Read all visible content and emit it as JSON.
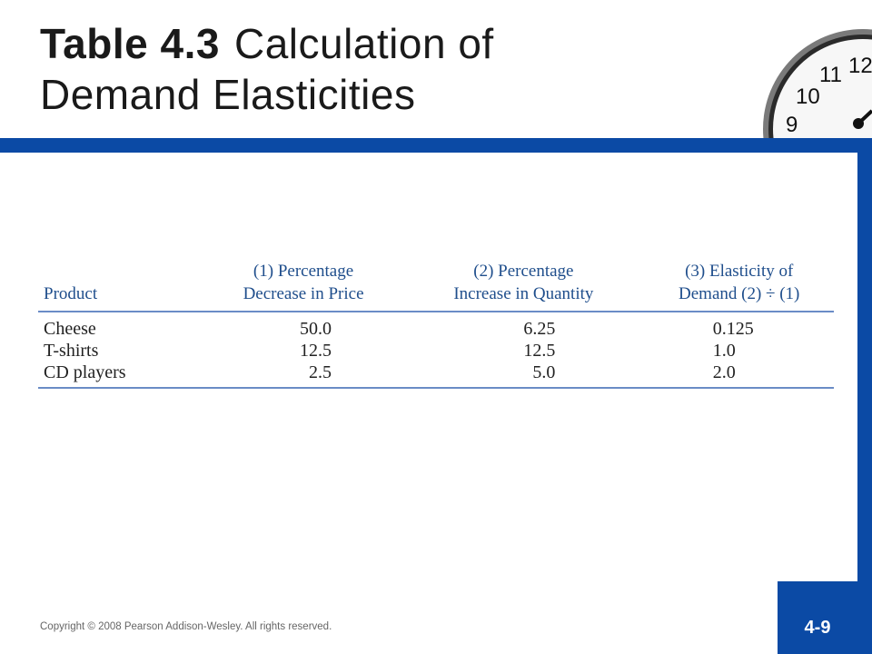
{
  "slide": {
    "title_bold": "Table 4.3",
    "title_rest_line1": "Calculation of",
    "title_line2": "Demand Elasticities",
    "copyright": "Copyright © 2008 Pearson Addison-Wesley. All rights reserved.",
    "slide_number": "4-9",
    "accent_color": "#0b4aa5"
  },
  "clock_numerals": [
    "12",
    "11",
    "10",
    "9"
  ],
  "table": {
    "header": {
      "col0": "Product",
      "col1_line1": "(1) Percentage",
      "col1_line2": "Decrease in Price",
      "col2_line1": "(2) Percentage",
      "col2_line2": "Increase in Quantity",
      "col3_line1": "(3) Elasticity of",
      "col3_line2": "Demand (2) ÷ (1)"
    },
    "rows": [
      {
        "product": "Cheese",
        "price_decrease": "50.0",
        "quantity_increase": "6.25",
        "elasticity": "0.125"
      },
      {
        "product": "T-shirts",
        "price_decrease": "12.5",
        "quantity_increase": "12.5",
        "elasticity": "1.0"
      },
      {
        "product": "CD players",
        "price_decrease": "2.5",
        "quantity_increase": "5.0",
        "elasticity": "2.0"
      }
    ]
  }
}
